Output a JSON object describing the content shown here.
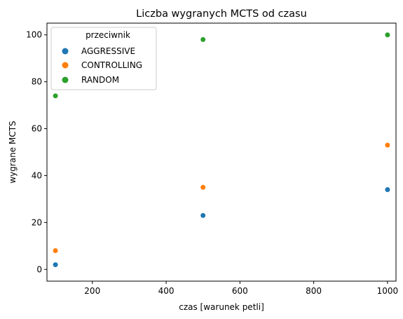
{
  "chart_data": {
    "type": "scatter",
    "title": "Liczba wygranych MCTS od czasu",
    "xlabel": "czas [warunek petli]",
    "ylabel": "wygrane MCTS",
    "xlim": [
      77,
      1023
    ],
    "ylim": [
      -5,
      105
    ],
    "xticks": [
      200,
      400,
      600,
      800,
      1000
    ],
    "yticks": [
      0,
      20,
      40,
      60,
      80,
      100
    ],
    "grid": false,
    "legend": {
      "title": "przeciwnik",
      "position": "top-left"
    },
    "series": [
      {
        "name": "AGGRESSIVE",
        "color": "#1f77b4",
        "points": [
          [
            100,
            2
          ],
          [
            500,
            23
          ],
          [
            1000,
            34
          ]
        ]
      },
      {
        "name": "CONTROLLING",
        "color": "#ff7f0e",
        "points": [
          [
            100,
            8
          ],
          [
            500,
            35
          ],
          [
            1000,
            53
          ]
        ]
      },
      {
        "name": "RANDOM",
        "color": "#2ca02c",
        "points": [
          [
            100,
            74
          ],
          [
            500,
            98
          ],
          [
            1000,
            100
          ]
        ]
      }
    ]
  }
}
